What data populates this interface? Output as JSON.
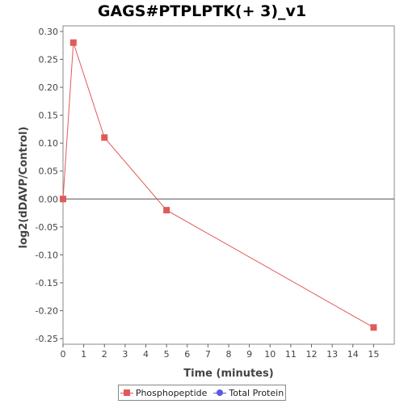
{
  "chart_data": {
    "type": "line",
    "title": "GAGS#PTPLPTK(+ 3)_v1",
    "xlabel": "Time (minutes)",
    "ylabel": "log2(dDAVP/Control)",
    "xlim": [
      0,
      16
    ],
    "ylim": [
      -0.26,
      0.31
    ],
    "xticks": [
      0,
      1,
      2,
      3,
      4,
      5,
      6,
      7,
      8,
      9,
      10,
      11,
      12,
      13,
      14,
      15
    ],
    "yticks": [
      -0.25,
      -0.2,
      -0.15,
      -0.1,
      -0.05,
      0.0,
      0.05,
      0.1,
      0.15,
      0.2,
      0.25,
      0.3
    ],
    "ytick_labels": [
      "-0.25",
      "-0.20",
      "-0.15",
      "-0.10",
      "-0.05",
      "0.00",
      "0.05",
      "0.10",
      "0.15",
      "0.20",
      "0.25",
      "0.30"
    ],
    "zero_line": true,
    "grid": false,
    "legend_position": "bottom",
    "series": [
      {
        "name": "Phosphopeptide",
        "color": "#e05a5a",
        "marker": "square",
        "x": [
          0,
          0.5,
          2,
          5,
          15
        ],
        "y": [
          0.0,
          0.28,
          0.11,
          -0.02,
          -0.23
        ]
      },
      {
        "name": "Total Protein",
        "color": "#5a5ae0",
        "marker": "circle",
        "x": [],
        "y": []
      }
    ]
  }
}
